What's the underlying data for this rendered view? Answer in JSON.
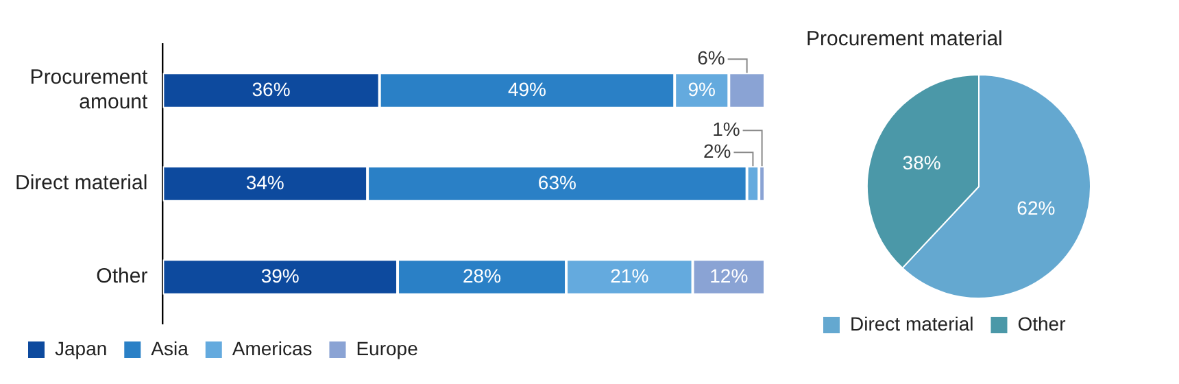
{
  "chart_data": [
    {
      "type": "bar",
      "orientation": "horizontal",
      "stacked": true,
      "categories": [
        "Procurement amount",
        "Direct material",
        "Other"
      ],
      "xlim": [
        0,
        100
      ],
      "tick_labels": "y",
      "legend": "bottom",
      "series": [
        {
          "name": "Japan",
          "color": "#0d4a9e",
          "values": [
            36,
            34,
            39
          ],
          "value_labels": [
            "36%",
            "34%",
            "39%"
          ]
        },
        {
          "name": "Asia",
          "color": "#2a80c6",
          "values": [
            49,
            63,
            28
          ],
          "value_labels": [
            "49%",
            "63%",
            "28%"
          ]
        },
        {
          "name": "Americas",
          "color": "#64aade",
          "values": [
            9,
            2,
            21
          ],
          "value_labels": [
            "9%",
            "2%",
            "21%"
          ]
        },
        {
          "name": "Europe",
          "color": "#8aa3d4",
          "values": [
            6,
            1,
            12
          ],
          "value_labels": [
            "6%",
            "1%",
            "12%"
          ]
        }
      ]
    },
    {
      "type": "pie",
      "title": "Procurement material",
      "categories": [
        "Direct material",
        "Other"
      ],
      "values": [
        62,
        38
      ],
      "colors": [
        "#64a8d0",
        "#4b98a8"
      ],
      "value_labels": [
        "62%",
        "38%"
      ],
      "legend": "bottom"
    }
  ]
}
